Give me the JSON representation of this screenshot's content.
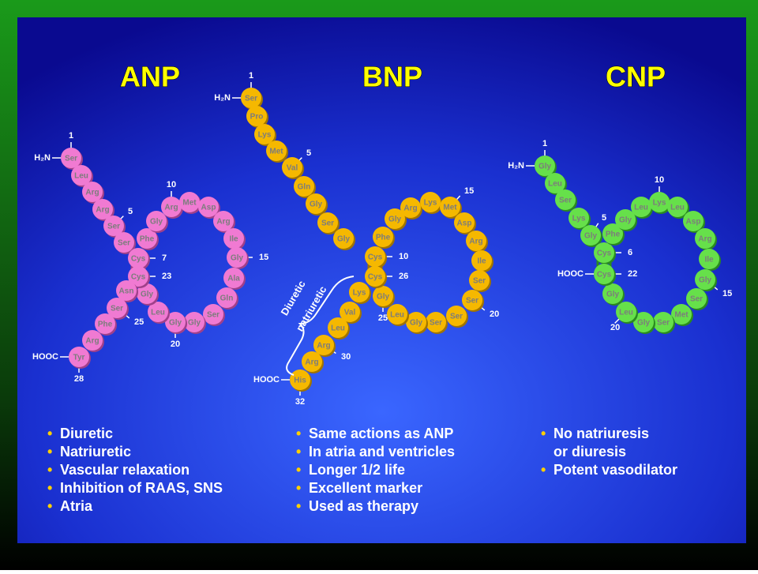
{
  "peptides": [
    {
      "title": "ANP",
      "n_term": "H₂N",
      "c_term": "HOOC",
      "residues": [
        "Ser",
        "Leu",
        "Arg",
        "Arg",
        "Ser",
        "Ser",
        "Cys",
        "Phe",
        "Gly",
        "Arg",
        "Met",
        "Asp",
        "Arg",
        "Ile",
        "Gly",
        "Ala",
        "Gln",
        "Ser",
        "Gly",
        "Gly",
        "Leu",
        "Gly",
        "Cys",
        "Asn",
        "Ser",
        "Phe",
        "Arg",
        "Tyr"
      ],
      "numbers": [
        1,
        5,
        7,
        10,
        15,
        20,
        23,
        25,
        28
      ],
      "bullets": [
        [
          "Diuretic"
        ],
        [
          "Natriuretic"
        ],
        [
          "Vascular relaxation"
        ],
        [
          "Inhibition of RAAS, SNS"
        ],
        [
          "Atria"
        ]
      ]
    },
    {
      "title": "BNP",
      "n_term": "H₂N",
      "c_term": "HOOC",
      "residues": [
        "Ser",
        "Pro",
        "Lys",
        "Met",
        "Val",
        "Gln",
        "Gly",
        "Ser",
        "Gly",
        "Cys",
        "Phe",
        "Gly",
        "Arg",
        "Lys",
        "Met",
        "Asp",
        "Arg",
        "Ile",
        "Ser",
        "Ser",
        "Ser",
        "Ser",
        "Gly",
        "Leu",
        "Gly",
        "Cys",
        "Lys",
        "Val",
        "Leu",
        "Arg",
        "Arg",
        "His"
      ],
      "numbers": [
        1,
        5,
        10,
        15,
        20,
        25,
        26,
        30,
        32
      ],
      "bracket_label": [
        "Diuretic",
        "natriuretic"
      ],
      "bullets": [
        [
          "Same  actions as ANP"
        ],
        [
          "In atria and ventricles"
        ],
        [
          "Longer 1/2 life"
        ],
        [
          "Excellent marker"
        ],
        [
          "Used as therapy"
        ]
      ]
    },
    {
      "title": "CNP",
      "n_term": "H₂N",
      "c_term": "HOOC",
      "residues": [
        "Gly",
        "Leu",
        "Ser",
        "Lys",
        "Gly",
        "Cys",
        "Phe",
        "Gly",
        "Leu",
        "Lys",
        "Leu",
        "Asp",
        "Arg",
        "Ile",
        "Gly",
        "Ser",
        "Met",
        "Ser",
        "Gly",
        "Leu",
        "Gly",
        "Cys"
      ],
      "numbers": [
        1,
        5,
        6,
        10,
        15,
        20,
        22
      ],
      "bullets": [
        [
          "No natriuresis",
          "or diuresis"
        ],
        [
          "Potent vasodilator"
        ]
      ]
    }
  ]
}
